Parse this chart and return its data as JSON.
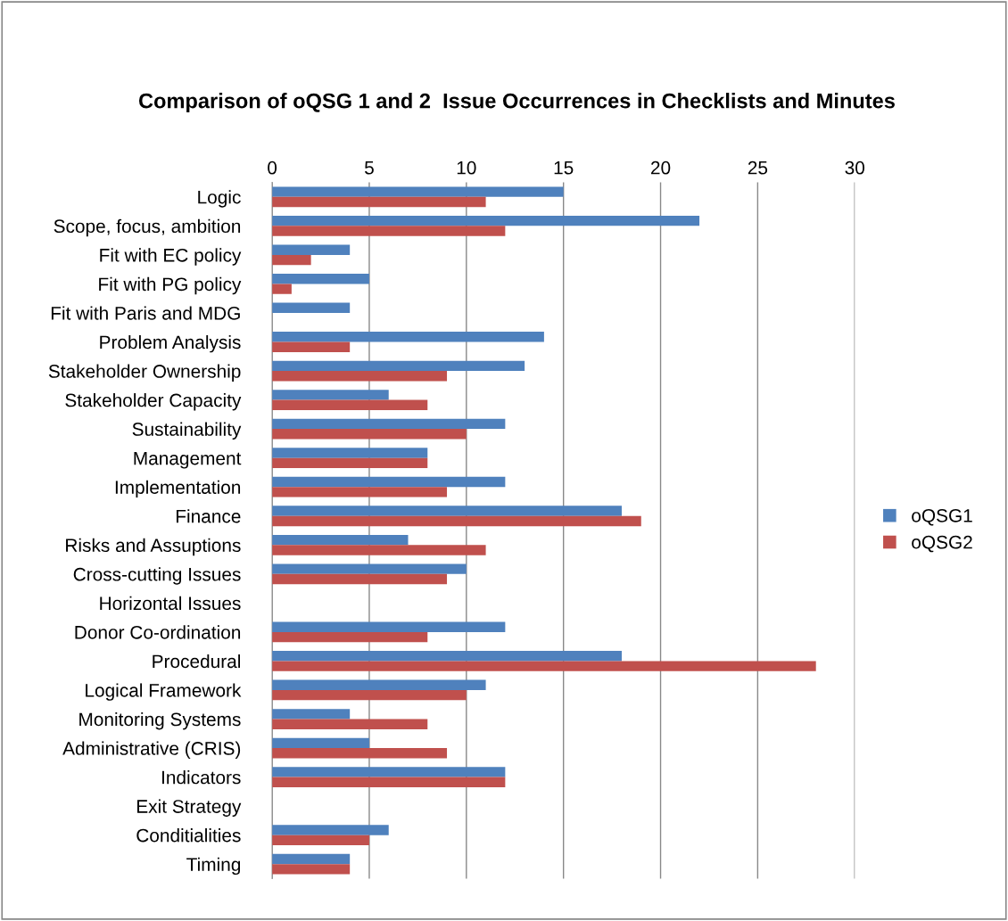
{
  "chart_data": {
    "type": "bar",
    "orientation": "horizontal",
    "title": "Comparison of oQSG 1 and 2  Issue Occurrences in Checklists and Minutes",
    "categories": [
      "Logic",
      "Scope, focus, ambition",
      "Fit with EC policy",
      "Fit with PG policy",
      "Fit with Paris and MDG",
      "Problem Analysis",
      "Stakeholder Ownership",
      "Stakeholder Capacity",
      "Sustainability",
      "Management",
      "Implementation",
      "Finance",
      "Risks and Assuptions",
      "Cross-cutting Issues",
      "Horizontal Issues",
      "Donor Co-ordination",
      "Procedural",
      "Logical Framework",
      "Monitoring Systems",
      "Administrative (CRIS)",
      "Indicators",
      "Exit Strategy",
      "Conditialities",
      "Timing"
    ],
    "series": [
      {
        "name": "oQSG1",
        "color": "#4f81bd",
        "values": [
          15,
          22,
          4,
          5,
          4,
          14,
          13,
          6,
          12,
          8,
          12,
          18,
          7,
          10,
          0,
          12,
          18,
          11,
          4,
          5,
          12,
          0,
          6,
          4
        ]
      },
      {
        "name": "oQSG2",
        "color": "#c0504d",
        "values": [
          11,
          12,
          2,
          1,
          0,
          4,
          9,
          8,
          10,
          8,
          9,
          19,
          11,
          9,
          0,
          8,
          28,
          10,
          8,
          9,
          12,
          0,
          5,
          4
        ]
      }
    ],
    "xlim": [
      0,
      30
    ],
    "xticks": [
      0,
      5,
      10,
      15,
      20,
      25,
      30
    ],
    "grid": "x",
    "legend": "right"
  }
}
